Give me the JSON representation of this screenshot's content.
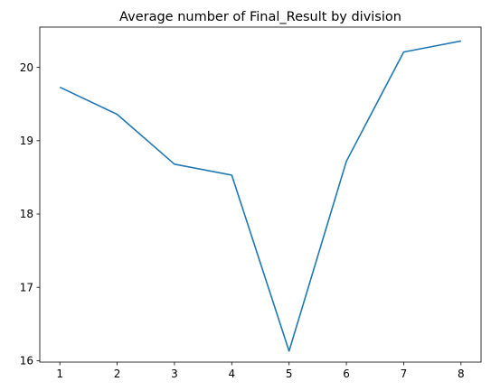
{
  "chart_data": {
    "type": "line",
    "title": "Average number of Final_Result by division",
    "xlabel": "",
    "ylabel": "",
    "x": [
      1,
      2,
      3,
      4,
      5,
      6,
      7,
      8
    ],
    "y": [
      19.73,
      19.36,
      18.68,
      18.53,
      16.13,
      18.72,
      20.21,
      20.36
    ],
    "xlim": [
      0.65,
      8.35
    ],
    "ylim": [
      15.98,
      20.55
    ],
    "x_ticks": [
      1,
      2,
      3,
      4,
      5,
      6,
      7,
      8
    ],
    "y_ticks": [
      16,
      17,
      18,
      19,
      20
    ],
    "line_color": "#1f77b4",
    "grid": false,
    "legend": "none"
  }
}
